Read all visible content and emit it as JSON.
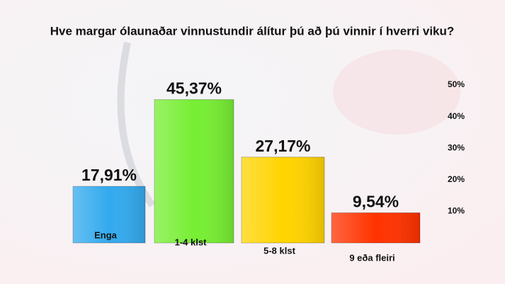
{
  "chart_data": {
    "type": "bar",
    "title": "Hve margar ólaunaðar vinnustundir álítur þú að þú vinnir í hverri viku?",
    "categories": [
      "Enga",
      "1-4 klst",
      "5-8 klst",
      "9 eða fleiri"
    ],
    "values": [
      17.91,
      45.37,
      27.17,
      9.54
    ],
    "value_labels": [
      "17,91%",
      "45,37%",
      "27,17%",
      "9,54%"
    ],
    "colors": [
      "#33aaee",
      "#77ee33",
      "#ffd400",
      "#ff3300"
    ],
    "ylim": [
      0,
      50
    ],
    "yticks": [
      {
        "value": 10,
        "label": "10%"
      },
      {
        "value": 20,
        "label": "20%"
      },
      {
        "value": 30,
        "label": "30%"
      },
      {
        "value": 40,
        "label": "40%"
      },
      {
        "value": 50,
        "label": "50%"
      }
    ],
    "grid": false
  }
}
